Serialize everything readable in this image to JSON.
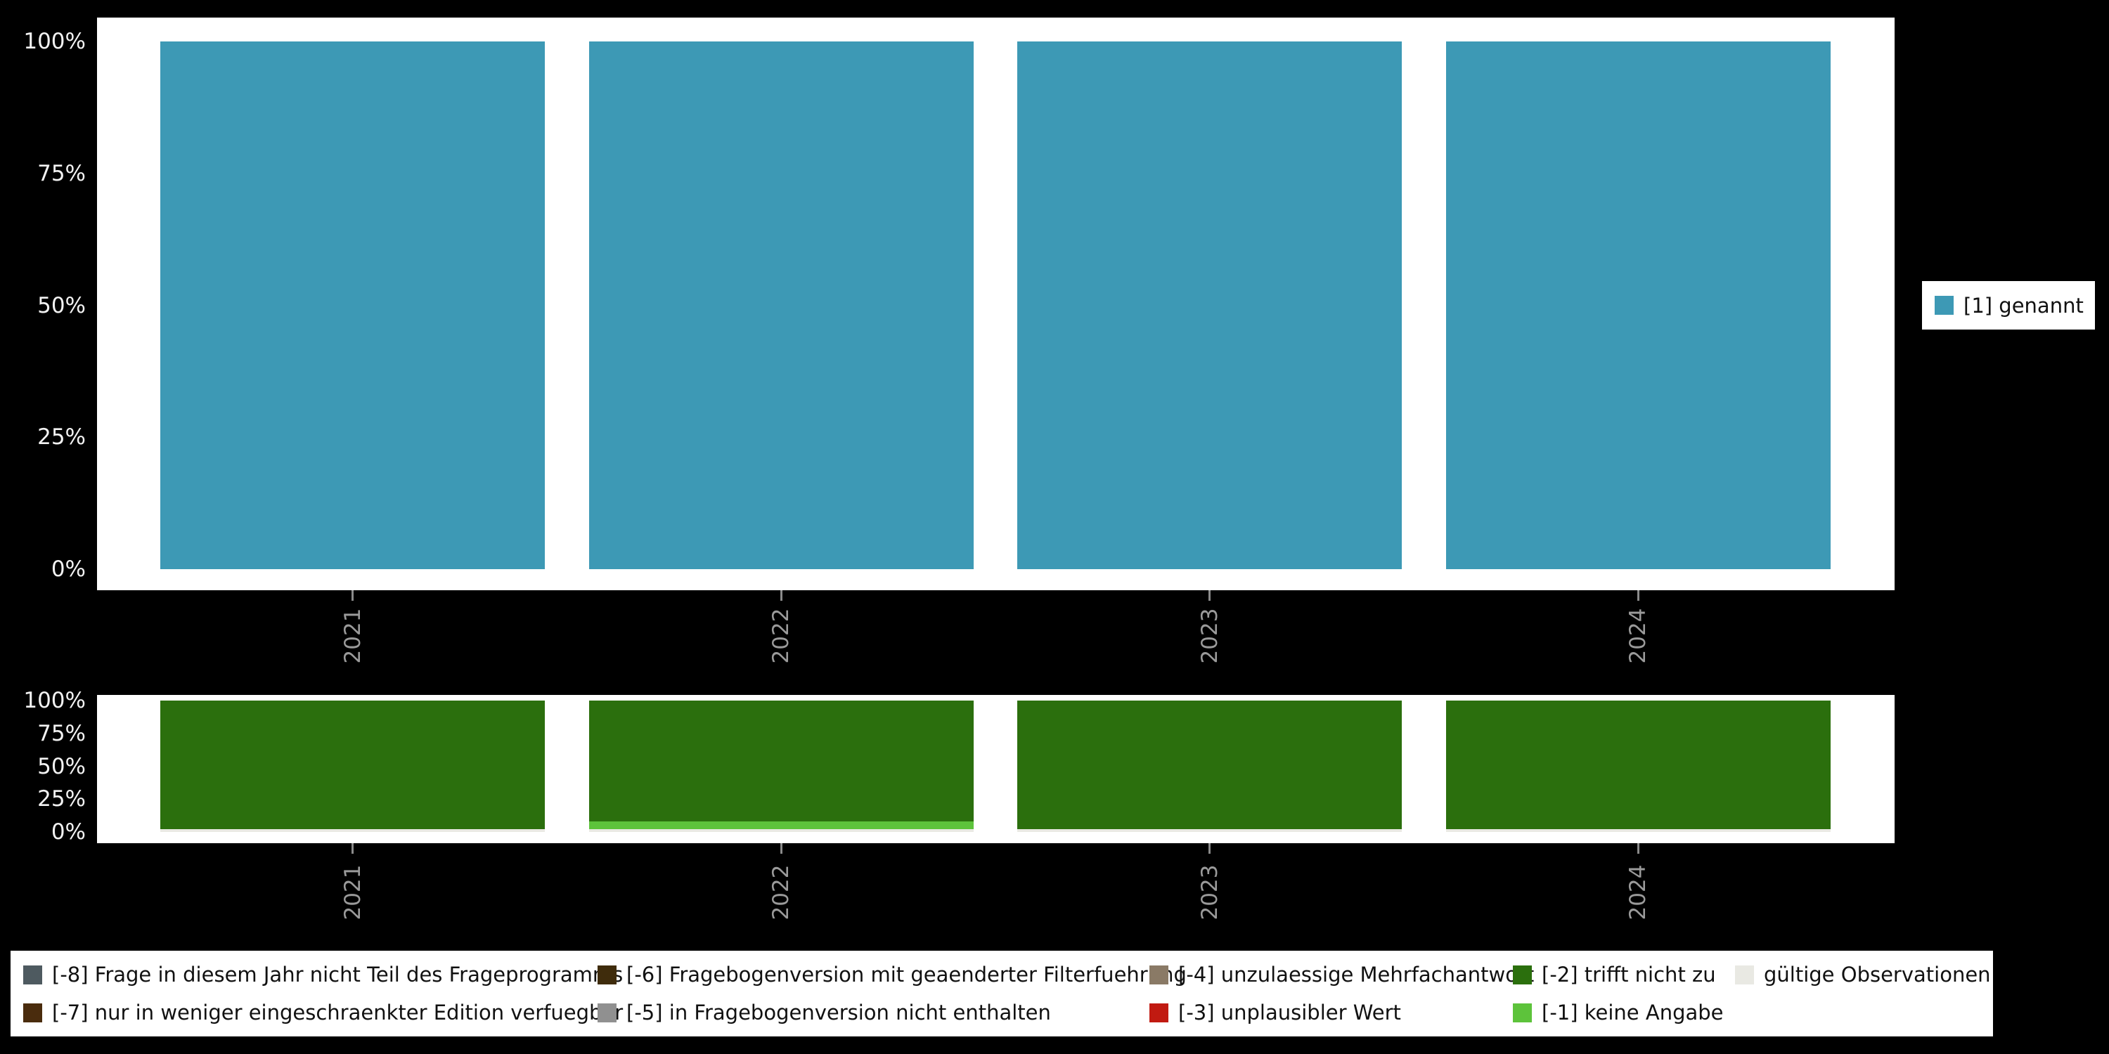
{
  "colors": {
    "background": "#000000",
    "panel": "#ffffff",
    "axis_percent_text": "#f2f2f2",
    "axis_year_text": "#9a9a9a",
    "tick_mark": "#8a8a8a",
    "legend_background": "#ffffff",
    "legend_text": "#111111"
  },
  "legend_right": {
    "label": "[1] genannt",
    "color": "#3d99b5"
  },
  "legend_bottom": {
    "rows": [
      [
        {
          "label": "[-8] Frage in diesem Jahr nicht Teil des Frageprogramms",
          "color": "#4e5a60"
        },
        {
          "label": "[-6] Fragebogenversion mit geaenderter Filterfuehrung",
          "color": "#3f2c0c"
        },
        {
          "label": "[-4] unzulaessige Mehrfachantwort",
          "color": "#8a7a66"
        },
        {
          "label": "[-2] trifft nicht zu",
          "color": "#2b6f0d"
        },
        {
          "label": "gültige Observationen",
          "color": "#e9e9e3"
        }
      ],
      [
        {
          "label": "[-7] nur in weniger eingeschraenkter Edition verfuegbar",
          "color": "#4a2c0d"
        },
        {
          "label": "[-5] in Fragebogenversion nicht enthalten",
          "color": "#909090"
        },
        {
          "label": "[-3] unplausibler Wert",
          "color": "#c11a11"
        },
        {
          "label": "[-1] keine Angabe",
          "color": "#5dc33b"
        }
      ]
    ]
  },
  "chart_data": [
    {
      "type": "bar",
      "title": "",
      "categories": [
        "2021",
        "2022",
        "2023",
        "2024"
      ],
      "series": [
        {
          "name": "[1] genannt",
          "color": "#3d99b5",
          "values": [
            100,
            100,
            100,
            100
          ]
        }
      ],
      "xlabel": "",
      "ylabel": "",
      "yticks": [
        "0%",
        "25%",
        "50%",
        "75%",
        "100%"
      ],
      "ylim": [
        0,
        100
      ],
      "grid": false,
      "legend_position": "right"
    },
    {
      "type": "bar",
      "stacked": true,
      "title": "",
      "categories": [
        "2021",
        "2022",
        "2023",
        "2024"
      ],
      "series": [
        {
          "name": "gültige Observationen",
          "color": "#e9e9e3",
          "values": [
            2,
            2,
            2,
            2
          ]
        },
        {
          "name": "[-1] keine Angabe",
          "color": "#5dc33b",
          "values": [
            0,
            6,
            0,
            0
          ]
        },
        {
          "name": "[-2] trifft nicht zu",
          "color": "#2b6f0d",
          "values": [
            98,
            92,
            98,
            98
          ]
        },
        {
          "name": "[-3] unplausibler Wert",
          "color": "#c11a11",
          "values": [
            0,
            0,
            0,
            0
          ]
        },
        {
          "name": "[-4] unzulaessige Mehrfachantwort",
          "color": "#8a7a66",
          "values": [
            0,
            0,
            0,
            0
          ]
        },
        {
          "name": "[-5] in Fragebogenversion nicht enthalten",
          "color": "#909090",
          "values": [
            0,
            0,
            0,
            0
          ]
        },
        {
          "name": "[-6] Fragebogenversion mit geaenderter Filterfuehrung",
          "color": "#3f2c0c",
          "values": [
            0,
            0,
            0,
            0
          ]
        },
        {
          "name": "[-7] nur in weniger eingeschraenkter Edition verfuegbar",
          "color": "#4a2c0d",
          "values": [
            0,
            0,
            0,
            0
          ]
        },
        {
          "name": "[-8] Frage in diesem Jahr nicht Teil des Frageprogramms",
          "color": "#4e5a60",
          "values": [
            0,
            0,
            0,
            0
          ]
        }
      ],
      "xlabel": "",
      "ylabel": "",
      "yticks": [
        "0%",
        "25%",
        "50%",
        "75%",
        "100%"
      ],
      "ylim": [
        0,
        100
      ],
      "grid": false,
      "legend_position": "bottom"
    }
  ]
}
